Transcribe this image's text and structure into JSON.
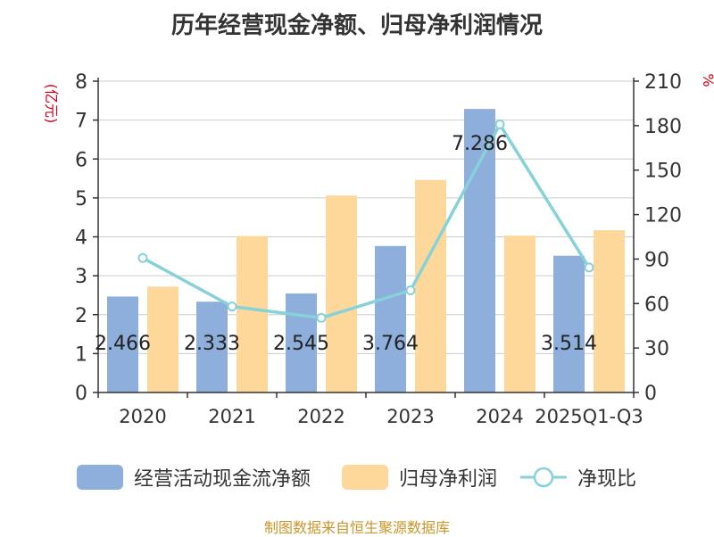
{
  "chart_data": {
    "type": "bar",
    "title": "历年经营现金净额、归母净利润情况",
    "categories": [
      "2020",
      "2021",
      "2022",
      "2023",
      "2024",
      "2025Q1-Q3"
    ],
    "ylabel": "(亿元)",
    "ylabel_right": "%",
    "ylim": [
      0,
      8
    ],
    "ylim_right": [
      0,
      210
    ],
    "yticks": [
      "0",
      "1",
      "2",
      "3",
      "4",
      "5",
      "6",
      "7",
      "8"
    ],
    "yticks_right": [
      "0",
      "30",
      "60",
      "90",
      "120",
      "150",
      "180",
      "210"
    ],
    "series": [
      {
        "name": "经营活动现金流净额",
        "type": "bar",
        "axis": "left",
        "color": "#8eaedb",
        "values": [
          2.466,
          2.333,
          2.545,
          3.764,
          7.286,
          3.514
        ],
        "labels": [
          "2.466",
          "2.333",
          "2.545",
          "3.764",
          "7.286",
          "3.514"
        ]
      },
      {
        "name": "归母净利润",
        "type": "bar",
        "axis": "left",
        "color": "#fdd89a",
        "values": [
          2.72,
          4.02,
          5.06,
          5.46,
          4.03,
          4.17
        ]
      },
      {
        "name": "净现比",
        "type": "line",
        "axis": "right",
        "color": "#86d2d8",
        "values": [
          90.7,
          58.0,
          50.3,
          68.9,
          180.8,
          84.3
        ]
      }
    ],
    "legend_position": "bottom",
    "grid": true,
    "source": "制图数据来自恒生聚源数据库"
  }
}
